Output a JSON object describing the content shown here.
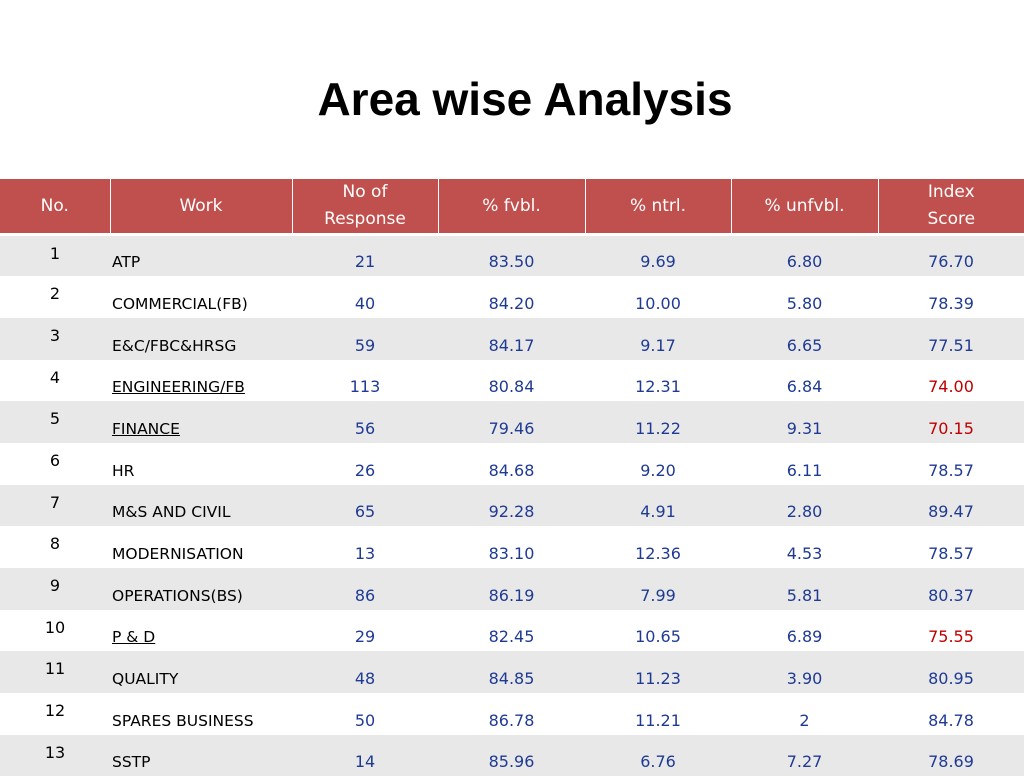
{
  "title": "Area wise Analysis",
  "headers": {
    "no": "No.",
    "work": "Work",
    "responses": "No of Response",
    "fvbl": "% fvbl.",
    "ntrl": "% ntrl.",
    "unfvbl": "% unfvbl.",
    "index": "Index Score"
  },
  "colors": {
    "header_bg": "#c0504d",
    "stripe": "#e8e8e9",
    "value_text": "#1f3a93",
    "alert_text": "#c00000"
  },
  "rows": [
    {
      "no": "1",
      "work": "ATP",
      "responses": "21",
      "fvbl": "83.50",
      "ntrl": "9.69",
      "unfvbl": "6.80",
      "index": "76.70",
      "underlined": false,
      "index_alert": false
    },
    {
      "no": "2",
      "work": "COMMERCIAL(FB)",
      "responses": "40",
      "fvbl": "84.20",
      "ntrl": "10.00",
      "unfvbl": "5.80",
      "index": "78.39",
      "underlined": false,
      "index_alert": false
    },
    {
      "no": "3",
      "work": "E&C/FBC&HRSG",
      "responses": "59",
      "fvbl": "84.17",
      "ntrl": "9.17",
      "unfvbl": "6.65",
      "index": "77.51",
      "underlined": false,
      "index_alert": false
    },
    {
      "no": "4",
      "work": "ENGINEERING/FB",
      "responses": "113",
      "fvbl": "80.84",
      "ntrl": "12.31",
      "unfvbl": "6.84",
      "index": "74.00",
      "underlined": true,
      "index_alert": true
    },
    {
      "no": "5",
      "work": "FINANCE",
      "responses": "56",
      "fvbl": "79.46",
      "ntrl": "11.22",
      "unfvbl": "9.31",
      "index": "70.15",
      "underlined": true,
      "index_alert": true
    },
    {
      "no": "6",
      "work": "HR",
      "responses": "26",
      "fvbl": "84.68",
      "ntrl": "9.20",
      "unfvbl": "6.11",
      "index": "78.57",
      "underlined": false,
      "index_alert": false
    },
    {
      "no": "7",
      "work": "M&S AND CIVIL",
      "responses": "65",
      "fvbl": "92.28",
      "ntrl": "4.91",
      "unfvbl": "2.80",
      "index": "89.47",
      "underlined": false,
      "index_alert": false
    },
    {
      "no": "8",
      "work": "MODERNISATION",
      "responses": "13",
      "fvbl": "83.10",
      "ntrl": "12.36",
      "unfvbl": "4.53",
      "index": "78.57",
      "underlined": false,
      "index_alert": false
    },
    {
      "no": "9",
      "work": "OPERATIONS(BS)",
      "responses": "86",
      "fvbl": "86.19",
      "ntrl": "7.99",
      "unfvbl": "5.81",
      "index": "80.37",
      "underlined": false,
      "index_alert": false
    },
    {
      "no": "10",
      "work": "P & D",
      "responses": "29",
      "fvbl": "82.45",
      "ntrl": "10.65",
      "unfvbl": "6.89",
      "index": "75.55",
      "underlined": true,
      "index_alert": true
    },
    {
      "no": "11",
      "work": "QUALITY",
      "responses": "48",
      "fvbl": "84.85",
      "ntrl": "11.23",
      "unfvbl": "3.90",
      "index": "80.95",
      "underlined": false,
      "index_alert": false
    },
    {
      "no": "12",
      "work": "SPARES BUSINESS",
      "responses": "50",
      "fvbl": "86.78",
      "ntrl": "11.21",
      "unfvbl": "2",
      "index": "84.78",
      "underlined": false,
      "index_alert": false
    },
    {
      "no": "13",
      "work": "SSTP",
      "responses": "14",
      "fvbl": "85.96",
      "ntrl": "6.76",
      "unfvbl": "7.27",
      "index": "78.69",
      "underlined": false,
      "index_alert": false
    }
  ]
}
